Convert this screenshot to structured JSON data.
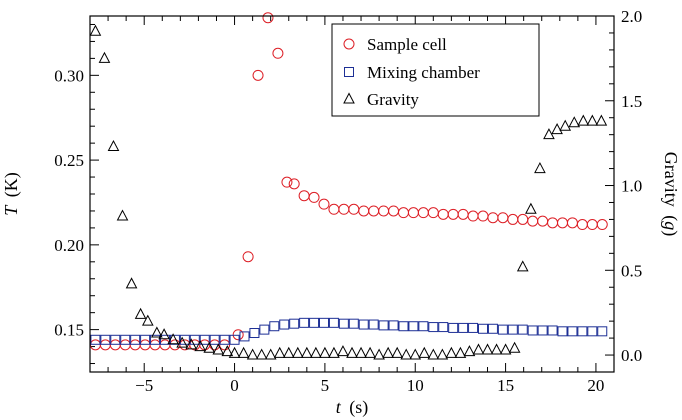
{
  "chart_data": {
    "type": "scatter",
    "xlabel_var": "t",
    "xlabel_unit": "(s)",
    "ylabel_var": "T",
    "ylabel_unit": "(K)",
    "y2label_main": "Gravity",
    "y2label_unit": "g",
    "xlim": [
      -8,
      21
    ],
    "ylim": [
      0.125,
      0.335
    ],
    "y2lim": [
      -0.1,
      2.0
    ],
    "x_ticks": [
      -5,
      0,
      5,
      10,
      15,
      20
    ],
    "x_tick_labels": [
      "−5",
      "0",
      "5",
      "10",
      "15",
      "20"
    ],
    "y_ticks": [
      0.15,
      0.2,
      0.25,
      0.3
    ],
    "y_tick_labels": [
      "0.15",
      "0.20",
      "0.25",
      "0.30"
    ],
    "y2_ticks": [
      0.0,
      0.5,
      1.0,
      1.5,
      2.0
    ],
    "y2_tick_labels": [
      "0.0",
      "0.5",
      "1.0",
      "1.5",
      "2.0"
    ],
    "grid": false,
    "legend_position": "top-right",
    "series": [
      {
        "name": "Sample cell",
        "axis": "left",
        "marker": "circle",
        "color": "#dd1f26",
        "x": [
          -7.7,
          -7.15,
          -6.6,
          -6.05,
          -5.5,
          -4.95,
          -4.4,
          -3.85,
          -3.3,
          -2.75,
          -2.2,
          -1.65,
          -1.1,
          -0.55,
          0.2,
          0.75,
          1.3,
          1.85,
          2.4,
          2.9,
          3.3,
          3.85,
          4.4,
          4.95,
          5.5,
          6.05,
          6.6,
          7.15,
          7.7,
          8.25,
          8.8,
          9.35,
          9.9,
          10.45,
          11.0,
          11.55,
          12.1,
          12.65,
          13.2,
          13.75,
          14.3,
          14.85,
          15.4,
          15.95,
          16.5,
          17.05,
          17.6,
          18.15,
          18.7,
          19.25,
          19.8,
          20.35
        ],
        "y": [
          0.141,
          0.141,
          0.141,
          0.141,
          0.141,
          0.141,
          0.141,
          0.141,
          0.141,
          0.141,
          0.141,
          0.141,
          0.141,
          0.141,
          0.147,
          0.193,
          0.3,
          0.334,
          0.313,
          0.237,
          0.236,
          0.229,
          0.228,
          0.224,
          0.221,
          0.221,
          0.221,
          0.22,
          0.22,
          0.22,
          0.22,
          0.219,
          0.219,
          0.219,
          0.219,
          0.218,
          0.218,
          0.218,
          0.217,
          0.217,
          0.216,
          0.216,
          0.215,
          0.215,
          0.214,
          0.214,
          0.213,
          0.213,
          0.213,
          0.212,
          0.212,
          0.212
        ]
      },
      {
        "name": "Mixing chamber",
        "axis": "left",
        "marker": "square",
        "color": "#1d2f95",
        "x": [
          -7.7,
          -7.15,
          -6.6,
          -6.05,
          -5.5,
          -4.95,
          -4.4,
          -3.85,
          -3.3,
          -2.75,
          -2.2,
          -1.65,
          -1.1,
          -0.55,
          0.0,
          0.55,
          1.1,
          1.65,
          2.2,
          2.75,
          3.3,
          3.85,
          4.4,
          4.95,
          5.5,
          6.05,
          6.6,
          7.15,
          7.7,
          8.25,
          8.8,
          9.35,
          9.9,
          10.45,
          11.0,
          11.55,
          12.1,
          12.65,
          13.2,
          13.75,
          14.3,
          14.85,
          15.4,
          15.95,
          16.5,
          17.05,
          17.6,
          18.15,
          18.7,
          19.25,
          19.8,
          20.35
        ],
        "y": [
          0.144,
          0.144,
          0.144,
          0.144,
          0.144,
          0.144,
          0.144,
          0.144,
          0.144,
          0.144,
          0.144,
          0.144,
          0.144,
          0.144,
          0.144,
          0.146,
          0.148,
          0.15,
          0.152,
          0.153,
          0.1535,
          0.154,
          0.154,
          0.154,
          0.154,
          0.1535,
          0.1535,
          0.153,
          0.153,
          0.1525,
          0.1525,
          0.152,
          0.152,
          0.152,
          0.1515,
          0.1515,
          0.151,
          0.151,
          0.151,
          0.1505,
          0.1505,
          0.15,
          0.15,
          0.15,
          0.1495,
          0.1495,
          0.1495,
          0.149,
          0.149,
          0.149,
          0.149,
          0.149
        ]
      },
      {
        "name": "Gravity",
        "axis": "right",
        "marker": "triangle",
        "color": "#000000",
        "x": [
          -7.7,
          -7.2,
          -6.7,
          -6.2,
          -5.7,
          -5.2,
          -4.8,
          -4.3,
          -3.9,
          -3.4,
          -2.9,
          -2.4,
          -1.9,
          -1.4,
          -0.9,
          -0.4,
          0.0,
          0.5,
          1.0,
          1.5,
          2.0,
          2.5,
          3.0,
          3.5,
          4.0,
          4.5,
          5.0,
          5.5,
          6.0,
          6.5,
          7.0,
          7.5,
          8.0,
          8.5,
          9.0,
          9.5,
          10.0,
          10.5,
          11.0,
          11.5,
          12.0,
          12.5,
          13.0,
          13.5,
          14.0,
          14.5,
          15.0,
          15.5,
          15.95,
          16.4,
          16.9,
          17.4,
          17.85,
          18.3,
          18.8,
          19.3,
          19.8,
          20.3
        ],
        "y": [
          1.91,
          1.75,
          1.23,
          0.82,
          0.42,
          0.24,
          0.2,
          0.13,
          0.12,
          0.09,
          0.07,
          0.06,
          0.05,
          0.04,
          0.03,
          0.02,
          0.01,
          0.01,
          0.0,
          0.0,
          0.0,
          0.01,
          0.01,
          0.01,
          0.01,
          0.01,
          0.01,
          0.01,
          0.02,
          0.01,
          0.01,
          0.01,
          0.0,
          0.01,
          0.01,
          0.0,
          0.0,
          0.01,
          0.0,
          0.0,
          0.01,
          0.01,
          0.02,
          0.03,
          0.03,
          0.03,
          0.03,
          0.04,
          0.52,
          0.86,
          1.1,
          1.3,
          1.33,
          1.35,
          1.37,
          1.38,
          1.38,
          1.38
        ]
      }
    ]
  }
}
